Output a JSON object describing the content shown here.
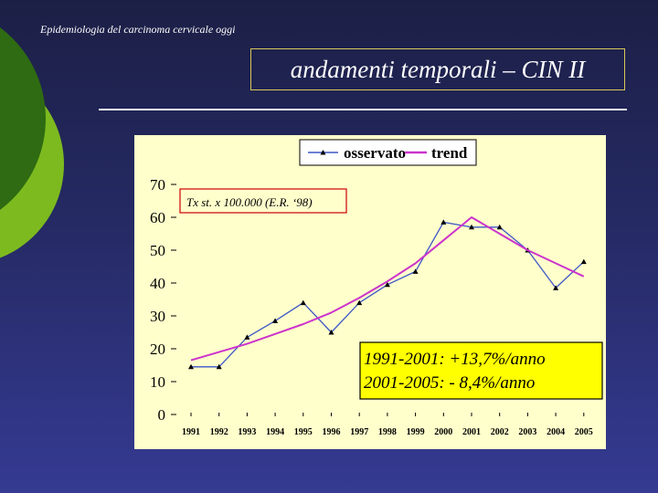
{
  "header": {
    "caption": "Epidemiologia del carcinoma cervicale oggi"
  },
  "title": "andamenti temporali – CIN II",
  "colors": {
    "background": "#252a64",
    "deco_dark_green": "#2f6b12",
    "deco_light_green": "#7dba1f",
    "panel": "#ffffcc",
    "observed": "#3d57c7",
    "trend": "#cc33cc"
  },
  "chart_data": {
    "type": "line",
    "categories": [
      "1991",
      "1992",
      "1993",
      "1994",
      "1995",
      "1996",
      "1997",
      "1998",
      "1999",
      "2000",
      "2001",
      "2002",
      "2003",
      "2004",
      "2005"
    ],
    "series": [
      {
        "name": "osservato",
        "values": [
          14.5,
          14.5,
          23.5,
          28.5,
          34,
          25,
          34,
          39.5,
          43.5,
          58.5,
          57,
          57,
          50,
          38.5,
          46.5
        ],
        "marker": "triangle",
        "color": "#3d57c7"
      },
      {
        "name": "trend",
        "values": [
          16.5,
          19,
          21.5,
          24.5,
          27.5,
          31,
          35.5,
          40.5,
          46,
          53,
          60,
          55,
          50,
          46,
          42
        ],
        "color": "#cc33cc"
      }
    ],
    "ylim": [
      0,
      70
    ],
    "yticks": [
      0,
      10,
      20,
      30,
      40,
      50,
      60,
      70
    ],
    "grid": false,
    "legend_position": "top",
    "annotations": {
      "rate_note": "Tx st. x 100.000 (E.R. ‘98)",
      "change_line1": "1991-2001: +13,7%/anno",
      "change_line2": "2001-2005:  - 8,4%/anno"
    }
  }
}
